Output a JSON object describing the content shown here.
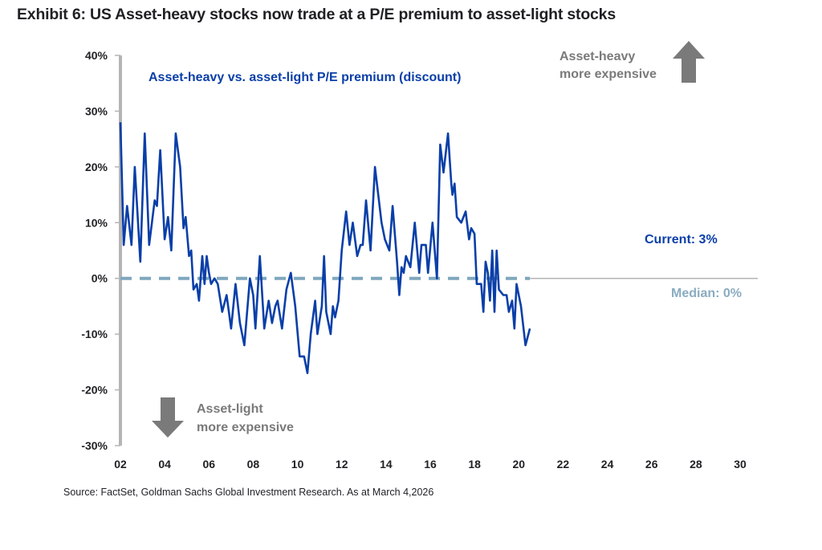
{
  "title": "Exhibit 6: US Asset-heavy stocks now trade at a P/E premium to asset-light stocks",
  "source": "Source: FactSet, Goldman Sachs Global Investment Research. As at March 4,2026",
  "colors": {
    "line": "#0a3fa8",
    "median": "#7fa7bd",
    "axis": "#b5b5b5",
    "arrow": "#7a7a7a"
  },
  "chart_data": {
    "type": "line",
    "title": "Exhibit 6: US Asset-heavy stocks now trade at a P/E premium to asset-light stocks",
    "xlabel": "",
    "ylabel": "",
    "xlim": [
      2002,
      2030
    ],
    "ylim": [
      -30,
      40
    ],
    "yticks": [
      -30,
      -20,
      -10,
      0,
      10,
      20,
      30,
      40
    ],
    "ytick_labels": [
      "-30%",
      "-20%",
      "-10%",
      "0%",
      "10%",
      "20%",
      "30%",
      "40%"
    ],
    "xticks": [
      2002,
      2004,
      2006,
      2008,
      2010,
      2012,
      2014,
      2016,
      2018,
      2020,
      2022,
      2024,
      2026,
      2028,
      2030
    ],
    "xtick_labels": [
      "02",
      "04",
      "06",
      "08",
      "10",
      "12",
      "14",
      "16",
      "18",
      "20",
      "22",
      "24",
      "26",
      "28",
      "30"
    ],
    "grid": false,
    "legend": "none",
    "series": [
      {
        "name": "Asset-heavy vs. asset-light P/E premium (discount)",
        "points": [
          [
            2002.0,
            28
          ],
          [
            2002.15,
            6
          ],
          [
            2002.3,
            13
          ],
          [
            2002.5,
            6
          ],
          [
            2002.65,
            20
          ],
          [
            2002.9,
            3
          ],
          [
            2003.1,
            26
          ],
          [
            2003.3,
            6
          ],
          [
            2003.55,
            14
          ],
          [
            2003.65,
            13
          ],
          [
            2003.8,
            23
          ],
          [
            2004.0,
            7
          ],
          [
            2004.15,
            11
          ],
          [
            2004.3,
            5
          ],
          [
            2004.5,
            26
          ],
          [
            2004.7,
            20
          ],
          [
            2004.85,
            9
          ],
          [
            2004.95,
            11
          ],
          [
            2005.1,
            4
          ],
          [
            2005.2,
            5
          ],
          [
            2005.3,
            -2
          ],
          [
            2005.45,
            -1
          ],
          [
            2005.55,
            -4
          ],
          [
            2005.7,
            4
          ],
          [
            2005.8,
            -1
          ],
          [
            2005.9,
            4
          ],
          [
            2006.0,
            1
          ],
          [
            2006.1,
            -1
          ],
          [
            2006.25,
            0
          ],
          [
            2006.4,
            -1
          ],
          [
            2006.6,
            -6
          ],
          [
            2006.8,
            -3
          ],
          [
            2007.0,
            -9
          ],
          [
            2007.2,
            -1
          ],
          [
            2007.4,
            -8
          ],
          [
            2007.6,
            -12
          ],
          [
            2007.85,
            0
          ],
          [
            2008.0,
            -3
          ],
          [
            2008.1,
            -9
          ],
          [
            2008.3,
            4
          ],
          [
            2008.5,
            -9
          ],
          [
            2008.7,
            -4
          ],
          [
            2008.85,
            -8
          ],
          [
            2009.0,
            -5
          ],
          [
            2009.1,
            -4
          ],
          [
            2009.3,
            -9
          ],
          [
            2009.5,
            -2
          ],
          [
            2009.7,
            1
          ],
          [
            2009.9,
            -5
          ],
          [
            2010.1,
            -14
          ],
          [
            2010.3,
            -14
          ],
          [
            2010.45,
            -17
          ],
          [
            2010.6,
            -10
          ],
          [
            2010.8,
            -4
          ],
          [
            2010.9,
            -10
          ],
          [
            2011.1,
            -5
          ],
          [
            2011.2,
            4
          ],
          [
            2011.3,
            -6
          ],
          [
            2011.5,
            -10
          ],
          [
            2011.6,
            -5
          ],
          [
            2011.7,
            -7
          ],
          [
            2011.85,
            -4
          ],
          [
            2012.0,
            5
          ],
          [
            2012.2,
            12
          ],
          [
            2012.35,
            6
          ],
          [
            2012.5,
            10
          ],
          [
            2012.7,
            4
          ],
          [
            2012.85,
            6
          ],
          [
            2012.95,
            6
          ],
          [
            2013.1,
            14
          ],
          [
            2013.3,
            5
          ],
          [
            2013.5,
            20
          ],
          [
            2013.8,
            10
          ],
          [
            2013.95,
            7
          ],
          [
            2014.15,
            5
          ],
          [
            2014.3,
            13
          ],
          [
            2014.5,
            3
          ],
          [
            2014.6,
            -3
          ],
          [
            2014.7,
            2
          ],
          [
            2014.8,
            1
          ],
          [
            2014.9,
            4
          ],
          [
            2015.0,
            3
          ],
          [
            2015.1,
            2
          ],
          [
            2015.3,
            10
          ],
          [
            2015.5,
            1
          ],
          [
            2015.6,
            6
          ],
          [
            2015.8,
            6
          ],
          [
            2015.9,
            1
          ],
          [
            2016.1,
            10
          ],
          [
            2016.3,
            0
          ],
          [
            2016.45,
            24
          ],
          [
            2016.6,
            19
          ],
          [
            2016.8,
            26
          ],
          [
            2016.95,
            17
          ],
          [
            2017.0,
            15
          ],
          [
            2017.1,
            17
          ],
          [
            2017.2,
            11
          ],
          [
            2017.4,
            10
          ],
          [
            2017.6,
            12
          ],
          [
            2017.75,
            7
          ],
          [
            2017.85,
            9
          ],
          [
            2018.0,
            8
          ],
          [
            2018.1,
            -1
          ],
          [
            2018.2,
            -1
          ],
          [
            2018.3,
            -1
          ],
          [
            2018.4,
            -6
          ],
          [
            2018.5,
            3
          ],
          [
            2018.6,
            1
          ],
          [
            2018.7,
            -4
          ],
          [
            2018.8,
            5
          ],
          [
            2018.9,
            -6
          ],
          [
            2019.0,
            5
          ],
          [
            2019.1,
            -2
          ],
          [
            2019.3,
            -3
          ],
          [
            2019.45,
            -3
          ],
          [
            2019.55,
            -6
          ],
          [
            2019.7,
            -4
          ],
          [
            2019.8,
            -9
          ],
          [
            2019.9,
            -1
          ],
          [
            2020.1,
            -5
          ],
          [
            2020.3,
            -12
          ],
          [
            2020.5,
            -9
          ]
        ]
      }
    ],
    "annotations": [
      {
        "text": "Asset-heavy vs. asset-light P/E premium (discount)",
        "role": "series-label"
      },
      {
        "text": "Asset-heavy\nmore expensive",
        "role": "up-arrow-label"
      },
      {
        "text": "Asset-light\nmore expensive",
        "role": "down-arrow-label"
      },
      {
        "text": "Current: 3%",
        "role": "current-value"
      },
      {
        "text": "Median: 0%",
        "role": "median-label"
      }
    ],
    "median": 0,
    "current": 3
  },
  "labels": {
    "series_label": "Asset-heavy vs. asset-light P/E premium (discount)",
    "up_line1": "Asset-heavy",
    "up_line2": "more expensive",
    "down_line1": "Asset-light",
    "down_line2": "more expensive",
    "current": "Current: 3%",
    "median": "Median: 0%"
  }
}
